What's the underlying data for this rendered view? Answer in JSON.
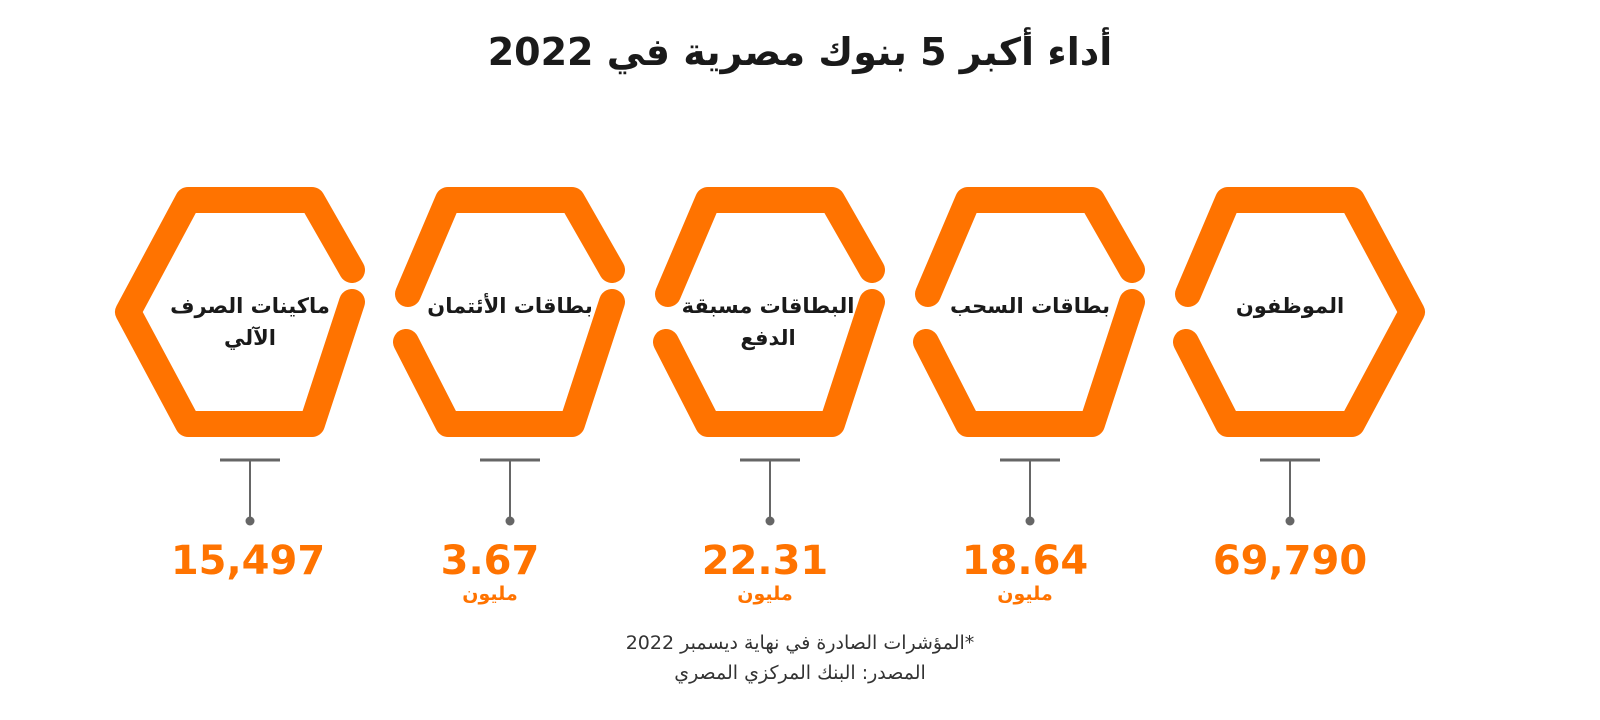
{
  "title": "أداء أكبر 5 بنوك مصرية في 2022",
  "colors": {
    "accent": "#ff7300",
    "text": "#1a1a1a",
    "stem": "#666666"
  },
  "items": [
    {
      "label_line1": "الموظفون",
      "label_line2": "",
      "value": "69,790",
      "unit": ""
    },
    {
      "label_line1": "بطاقات السحب",
      "label_line2": "",
      "value": "18.64",
      "unit": "مليون"
    },
    {
      "label_line1": "البطاقات مسبقة",
      "label_line2": "الدفع",
      "value": "22.31",
      "unit": "مليون"
    },
    {
      "label_line1": "بطاقات الأئتمان",
      "label_line2": "",
      "value": "3.67",
      "unit": "مليون"
    },
    {
      "label_line1": "ماكينات الصرف",
      "label_line2": "الآلي",
      "value": "15,497",
      "unit": ""
    }
  ],
  "footnotes": {
    "note": "*المؤشرات الصادرة في نهاية ديسمبر 2022",
    "source": "المصدر: البنك المركزي المصري"
  }
}
